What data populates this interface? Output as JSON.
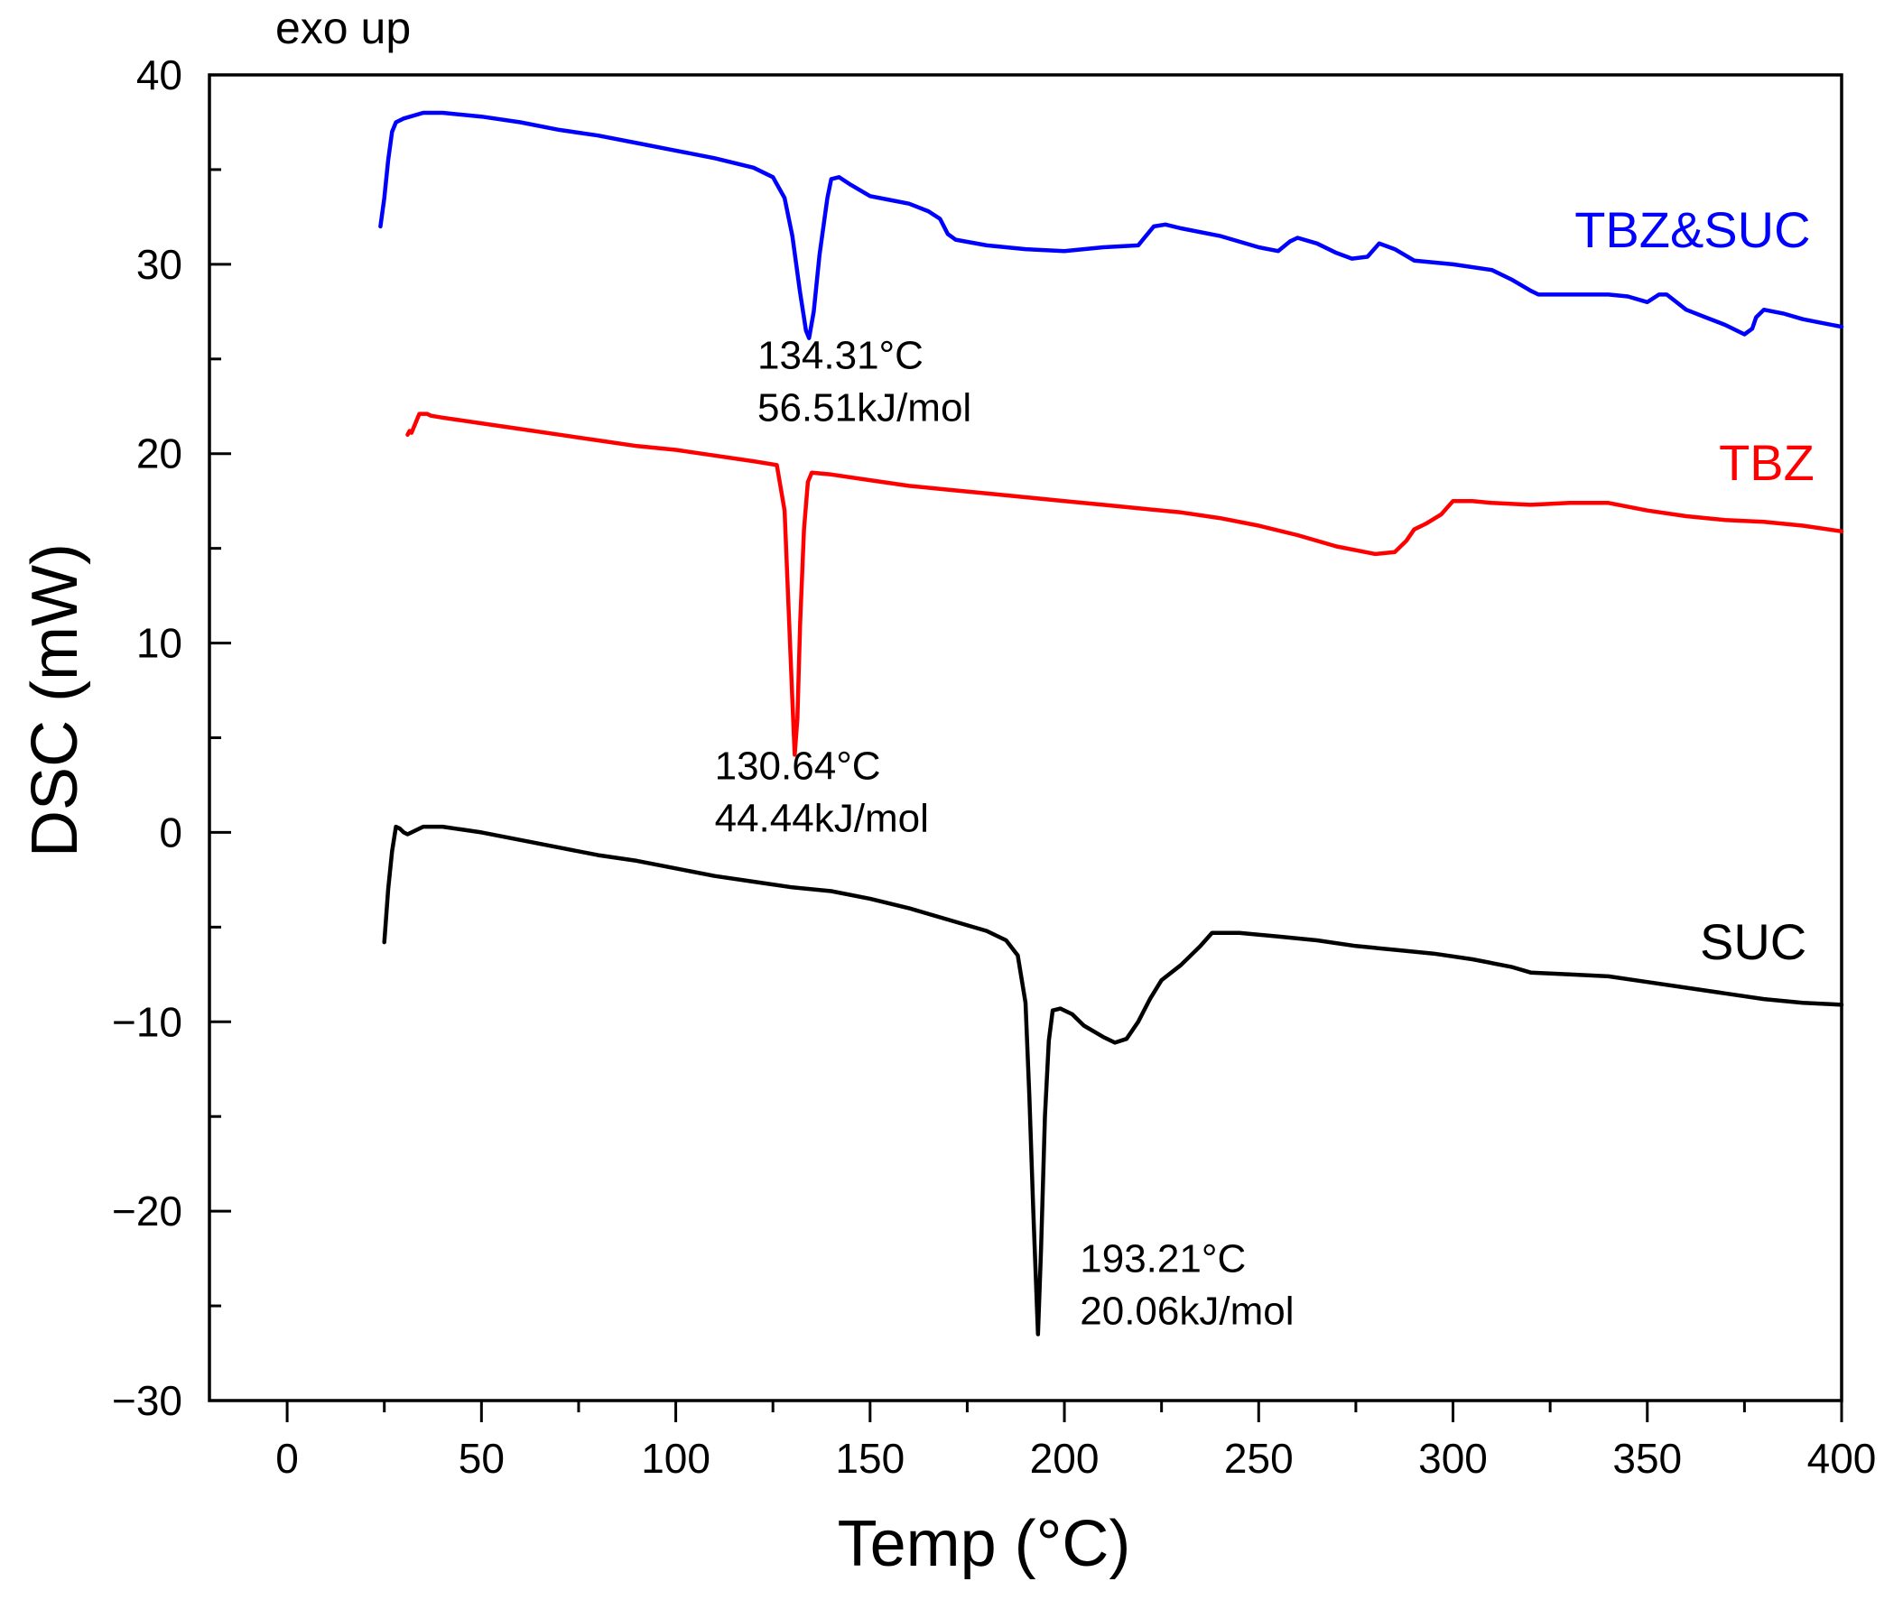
{
  "chart_data": {
    "type": "line",
    "title": "",
    "note": "exo up",
    "xlabel": "Temp (°C)",
    "ylabel": "DSC (mW)",
    "xlim": [
      -20,
      400
    ],
    "ylim": [
      -30,
      40
    ],
    "xticks": [
      0,
      50,
      100,
      150,
      200,
      250,
      300,
      350,
      400
    ],
    "yticks": [
      40,
      30,
      20,
      10,
      0,
      -10,
      -20,
      -30
    ],
    "ytick_labels": [
      "40",
      "30",
      "20",
      "10",
      "0",
      "−10",
      "−20",
      "−30"
    ],
    "series": [
      {
        "name": "TBZ&SUC",
        "color": "#0000ff",
        "points": [
          [
            24,
            32
          ],
          [
            25,
            33.5
          ],
          [
            26,
            35.5
          ],
          [
            27,
            37
          ],
          [
            28,
            37.5
          ],
          [
            30,
            37.7
          ],
          [
            35,
            38
          ],
          [
            40,
            38
          ],
          [
            50,
            37.8
          ],
          [
            60,
            37.5
          ],
          [
            70,
            37.1
          ],
          [
            80,
            36.8
          ],
          [
            90,
            36.4
          ],
          [
            100,
            36
          ],
          [
            110,
            35.6
          ],
          [
            120,
            35.1
          ],
          [
            125,
            34.6
          ],
          [
            128,
            33.5
          ],
          [
            130,
            31.5
          ],
          [
            132,
            28.5
          ],
          [
            133.5,
            26.5
          ],
          [
            134.3,
            26.1
          ],
          [
            135.5,
            27.5
          ],
          [
            137,
            30.5
          ],
          [
            139,
            33.5
          ],
          [
            140,
            34.5
          ],
          [
            142,
            34.6
          ],
          [
            145,
            34.2
          ],
          [
            150,
            33.6
          ],
          [
            155,
            33.4
          ],
          [
            160,
            33.2
          ],
          [
            165,
            32.8
          ],
          [
            168,
            32.4
          ],
          [
            170,
            31.6
          ],
          [
            172,
            31.3
          ],
          [
            180,
            31
          ],
          [
            190,
            30.8
          ],
          [
            200,
            30.7
          ],
          [
            210,
            30.9
          ],
          [
            219,
            31
          ],
          [
            221,
            31.5
          ],
          [
            223,
            32
          ],
          [
            226,
            32.1
          ],
          [
            230,
            31.9
          ],
          [
            240,
            31.5
          ],
          [
            250,
            30.9
          ],
          [
            255,
            30.7
          ],
          [
            258,
            31.2
          ],
          [
            260,
            31.4
          ],
          [
            265,
            31.1
          ],
          [
            270,
            30.6
          ],
          [
            274,
            30.3
          ],
          [
            278,
            30.4
          ],
          [
            281,
            31.1
          ],
          [
            285,
            30.8
          ],
          [
            290,
            30.2
          ],
          [
            300,
            30
          ],
          [
            310,
            29.7
          ],
          [
            315,
            29.2
          ],
          [
            320,
            28.6
          ],
          [
            322,
            28.4
          ],
          [
            330,
            28.4
          ],
          [
            340,
            28.4
          ],
          [
            345,
            28.3
          ],
          [
            350,
            28
          ],
          [
            353,
            28.4
          ],
          [
            355,
            28.4
          ],
          [
            360,
            27.6
          ],
          [
            365,
            27.2
          ],
          [
            370,
            26.8
          ],
          [
            375,
            26.3
          ],
          [
            377,
            26.6
          ],
          [
            378,
            27.2
          ],
          [
            380,
            27.6
          ],
          [
            385,
            27.4
          ],
          [
            390,
            27.1
          ],
          [
            395,
            26.9
          ],
          [
            400,
            26.7
          ]
        ]
      },
      {
        "name": "TBZ",
        "color": "#ff0000",
        "points": [
          [
            31,
            21
          ],
          [
            31.5,
            21.2
          ],
          [
            32,
            21.1
          ],
          [
            33,
            21.6
          ],
          [
            34,
            22.1
          ],
          [
            36,
            22.1
          ],
          [
            37,
            22
          ],
          [
            40,
            21.9
          ],
          [
            50,
            21.6
          ],
          [
            60,
            21.3
          ],
          [
            70,
            21
          ],
          [
            80,
            20.7
          ],
          [
            90,
            20.4
          ],
          [
            100,
            20.2
          ],
          [
            110,
            19.9
          ],
          [
            120,
            19.6
          ],
          [
            126,
            19.4
          ],
          [
            128,
            17
          ],
          [
            129,
            12
          ],
          [
            130,
            7
          ],
          [
            130.6,
            4.1
          ],
          [
            131.3,
            6
          ],
          [
            132,
            11
          ],
          [
            133,
            16
          ],
          [
            134,
            18.5
          ],
          [
            135,
            19
          ],
          [
            140,
            18.9
          ],
          [
            150,
            18.6
          ],
          [
            160,
            18.3
          ],
          [
            170,
            18.1
          ],
          [
            180,
            17.9
          ],
          [
            190,
            17.7
          ],
          [
            200,
            17.5
          ],
          [
            210,
            17.3
          ],
          [
            220,
            17.1
          ],
          [
            230,
            16.9
          ],
          [
            240,
            16.6
          ],
          [
            250,
            16.2
          ],
          [
            260,
            15.7
          ],
          [
            270,
            15.1
          ],
          [
            275,
            14.9
          ],
          [
            280,
            14.7
          ],
          [
            285,
            14.8
          ],
          [
            288,
            15.4
          ],
          [
            290,
            16
          ],
          [
            293,
            16.3
          ],
          [
            297,
            16.8
          ],
          [
            300,
            17.5
          ],
          [
            305,
            17.5
          ],
          [
            310,
            17.4
          ],
          [
            320,
            17.3
          ],
          [
            330,
            17.4
          ],
          [
            335,
            17.4
          ],
          [
            340,
            17.4
          ],
          [
            350,
            17
          ],
          [
            360,
            16.7
          ],
          [
            370,
            16.5
          ],
          [
            380,
            16.4
          ],
          [
            390,
            16.2
          ],
          [
            400,
            15.9
          ]
        ]
      },
      {
        "name": "SUC",
        "color": "#000000",
        "points": [
          [
            25,
            -5.8
          ],
          [
            26,
            -3
          ],
          [
            27,
            -1
          ],
          [
            28,
            0.3
          ],
          [
            29,
            0.2
          ],
          [
            30,
            0
          ],
          [
            31,
            -0.1
          ],
          [
            35,
            0.3
          ],
          [
            40,
            0.3
          ],
          [
            50,
            0
          ],
          [
            60,
            -0.4
          ],
          [
            70,
            -0.8
          ],
          [
            80,
            -1.2
          ],
          [
            90,
            -1.5
          ],
          [
            100,
            -1.9
          ],
          [
            110,
            -2.3
          ],
          [
            120,
            -2.6
          ],
          [
            130,
            -2.9
          ],
          [
            140,
            -3.1
          ],
          [
            150,
            -3.5
          ],
          [
            160,
            -4
          ],
          [
            170,
            -4.6
          ],
          [
            180,
            -5.2
          ],
          [
            185,
            -5.7
          ],
          [
            188,
            -6.5
          ],
          [
            190,
            -9
          ],
          [
            191,
            -14
          ],
          [
            192,
            -20
          ],
          [
            193.2,
            -26.5
          ],
          [
            194,
            -22
          ],
          [
            195,
            -15
          ],
          [
            196,
            -11
          ],
          [
            197,
            -9.4
          ],
          [
            199,
            -9.3
          ],
          [
            202,
            -9.6
          ],
          [
            205,
            -10.2
          ],
          [
            210,
            -10.8
          ],
          [
            213,
            -11.1
          ],
          [
            216,
            -10.9
          ],
          [
            219,
            -10
          ],
          [
            222,
            -8.8
          ],
          [
            225,
            -7.8
          ],
          [
            230,
            -7
          ],
          [
            235,
            -6
          ],
          [
            238,
            -5.3
          ],
          [
            245,
            -5.3
          ],
          [
            255,
            -5.5
          ],
          [
            265,
            -5.7
          ],
          [
            275,
            -6
          ],
          [
            285,
            -6.2
          ],
          [
            295,
            -6.4
          ],
          [
            305,
            -6.7
          ],
          [
            315,
            -7.1
          ],
          [
            320,
            -7.4
          ],
          [
            330,
            -7.5
          ],
          [
            340,
            -7.6
          ],
          [
            350,
            -7.9
          ],
          [
            360,
            -8.2
          ],
          [
            370,
            -8.5
          ],
          [
            380,
            -8.8
          ],
          [
            390,
            -9
          ],
          [
            400,
            -9.1
          ]
        ]
      }
    ],
    "annotations": [
      {
        "line1": "134.31°C",
        "line2": "56.51kJ/mol",
        "x": 121,
        "y": 24.5
      },
      {
        "line1": "130.64°C",
        "line2": "44.44kJ/mol",
        "x": 110,
        "y": 2.8
      },
      {
        "line1": "193.21°C",
        "line2": "20.06kJ/mol",
        "x": 204,
        "y": -23.2
      }
    ],
    "series_labels": [
      {
        "text": "TBZ&SUC",
        "x": 392,
        "y": 30.9
      },
      {
        "text": "TBZ",
        "x": 393,
        "y": 18.6
      },
      {
        "text": "SUC",
        "x": 391,
        "y": -6.7
      }
    ]
  }
}
